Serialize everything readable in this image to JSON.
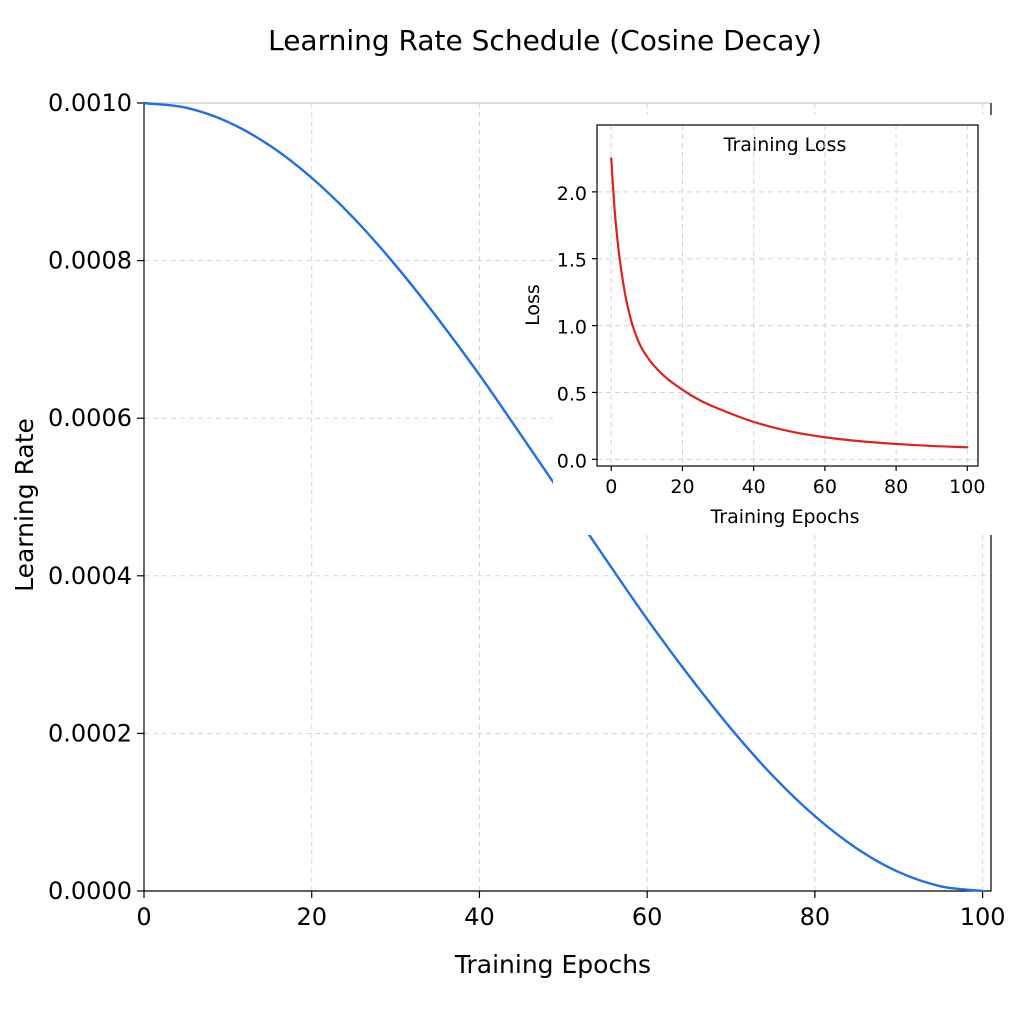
{
  "chart_data": [
    {
      "type": "line",
      "title": "Learning Rate Schedule (Cosine Decay)",
      "xlabel": "Training Epochs",
      "ylabel": "Learning Rate",
      "xlim": [
        0,
        101
      ],
      "ylim": [
        0,
        0.001
      ],
      "xticks": [
        0,
        20,
        40,
        60,
        80,
        100
      ],
      "xtick_labels": [
        "0",
        "20",
        "40",
        "60",
        "80",
        "100"
      ],
      "yticks": [
        0,
        0.0002,
        0.0004,
        0.0006,
        0.0008,
        0.001
      ],
      "ytick_labels": [
        "0.0000",
        "0.0002",
        "0.0004",
        "0.0006",
        "0.0008",
        "0.0010"
      ],
      "grid": true,
      "series": [
        {
          "color": "#1f6fe5",
          "x": [
            0,
            5,
            10,
            15,
            20,
            25,
            30,
            35,
            40,
            45,
            50,
            55,
            60,
            65,
            70,
            75,
            80,
            85,
            90,
            95,
            100
          ],
          "y": [
            0.001,
            0.000994,
            0.000976,
            0.000946,
            0.000905,
            0.000854,
            0.000794,
            0.000727,
            0.000655,
            0.000578,
            0.0005,
            0.000422,
            0.000345,
            0.000273,
            0.000206,
            0.000146,
            9.5e-05,
            5.4e-05,
            2.4e-05,
            6e-06,
            0.0
          ]
        }
      ]
    },
    {
      "type": "line",
      "title": "Training Loss",
      "xlabel": "Training Epochs",
      "ylabel": "Loss",
      "xlim": [
        -4,
        103
      ],
      "ylim": [
        -0.05,
        2.5
      ],
      "xticks": [
        0,
        20,
        40,
        60,
        80,
        100
      ],
      "xtick_labels": [
        "0",
        "20",
        "40",
        "60",
        "80",
        "100"
      ],
      "yticks": [
        0,
        0.5,
        1.0,
        1.5,
        2.0
      ],
      "ytick_labels": [
        "0.0",
        "0.5",
        "1.0",
        "1.5",
        "2.0"
      ],
      "grid": true,
      "series": [
        {
          "color": "#e02020",
          "x": [
            0,
            1,
            2,
            3,
            4,
            5,
            6,
            8,
            10,
            12,
            15,
            20,
            25,
            30,
            40,
            50,
            60,
            70,
            80,
            90,
            100
          ],
          "y": [
            2.25,
            1.85,
            1.58,
            1.38,
            1.22,
            1.1,
            1.0,
            0.86,
            0.77,
            0.7,
            0.62,
            0.52,
            0.44,
            0.38,
            0.28,
            0.21,
            0.165,
            0.135,
            0.115,
            0.1,
            0.09
          ]
        }
      ]
    }
  ]
}
